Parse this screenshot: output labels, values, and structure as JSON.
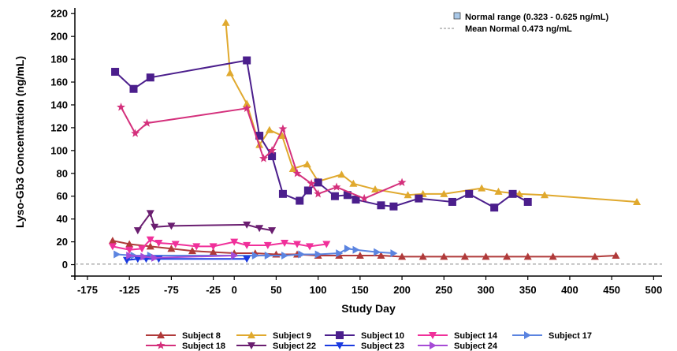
{
  "chart_data": {
    "type": "line",
    "xlabel": "Study Day",
    "ylabel": "Lyso-Gb3 Concentration (ng/mL)",
    "xlim": [
      -190,
      510
    ],
    "ylim": [
      -10,
      225
    ],
    "xticks": [
      -175,
      0,
      50,
      100,
      150,
      200,
      250,
      300,
      350,
      400,
      450,
      500
    ],
    "xtick_labels": [
      "-175",
      "0",
      "50",
      "100",
      "150",
      "200",
      "250",
      "300",
      "350",
      "400",
      "450",
      "500"
    ],
    "xtick_label_overrides": [
      {
        "value": -125,
        "label": "-125"
      },
      {
        "value": -75,
        "label": "-75"
      },
      {
        "value": -25,
        "label": "-25"
      }
    ],
    "yticks": [
      0,
      20,
      40,
      60,
      80,
      100,
      120,
      140,
      160,
      180,
      200,
      220
    ],
    "grid": false,
    "reference_lines": [
      {
        "name": "Mean Normal 0.473 ng/mL",
        "y": 0.473,
        "style": "dashed",
        "color": "#888888"
      }
    ],
    "normal_range": {
      "name": "Normal range (0.323 - 0.625 ng/mL)",
      "low": 0.323,
      "high": 0.625,
      "color": "#a9c8e8"
    },
    "legend_top": [
      {
        "label": "Normal range (0.323 - 0.625 ng/mL)",
        "kind": "range"
      },
      {
        "label": "Mean Normal 0.473 ng/mL",
        "kind": "dashed"
      }
    ],
    "legend_bottom_placement": "bottom-center",
    "series": [
      {
        "name": "Subject 8",
        "color": "#b03a3a",
        "marker": "triangle-up",
        "x": [
          -145,
          -125,
          -100,
          -75,
          -50,
          -25,
          0,
          25,
          50,
          75,
          100,
          125,
          150,
          175,
          200,
          225,
          250,
          275,
          300,
          325,
          350,
          380,
          430,
          455
        ],
        "y": [
          21,
          18,
          16,
          14,
          12,
          11,
          10,
          10,
          9,
          9,
          8,
          8,
          8,
          8,
          7,
          7,
          7,
          7,
          7,
          7,
          7,
          7,
          7,
          8
        ]
      },
      {
        "name": "Subject 9",
        "color": "#e0a92e",
        "marker": "triangle-up",
        "x": [
          -10,
          -5,
          15,
          30,
          42,
          57,
          70,
          87,
          100,
          128,
          142,
          168,
          207,
          225,
          250,
          295,
          315,
          340,
          370,
          480
        ],
        "y": [
          212,
          168,
          141,
          105,
          118,
          113,
          84,
          88,
          73,
          79,
          71,
          66,
          61,
          62,
          62,
          67,
          64,
          62,
          61,
          55
        ]
      },
      {
        "name": "Subject 10",
        "color": "#4b1e8c",
        "marker": "square",
        "x": [
          -142,
          -120,
          -100,
          15,
          30,
          45,
          58,
          78,
          88,
          100,
          120,
          135,
          145,
          175,
          190,
          220,
          260,
          280,
          310,
          332,
          350
        ],
        "y": [
          169,
          154,
          164,
          179,
          113,
          95,
          62,
          56,
          65,
          72,
          60,
          61,
          57,
          52,
          51,
          58,
          55,
          62,
          50,
          62,
          55
        ]
      },
      {
        "name": "Subject 14",
        "color": "#f0309a",
        "marker": "triangle-down",
        "x": [
          -145,
          -125,
          -110,
          -100,
          -90,
          -70,
          -45,
          -25,
          0,
          15,
          40,
          60,
          75,
          90,
          110
        ],
        "y": [
          16,
          13,
          14,
          22,
          19,
          18,
          16,
          16,
          20,
          17,
          17,
          19,
          18,
          16,
          18
        ]
      },
      {
        "name": "Subject 17",
        "color": "#5b84e0",
        "marker": "triangle-right",
        "x": [
          -140,
          -120,
          -100,
          0,
          25,
          40,
          60,
          80,
          100,
          125,
          135,
          145,
          170,
          190
        ],
        "y": [
          9,
          8,
          8,
          8,
          8,
          8,
          8,
          9,
          9,
          10,
          14,
          13,
          11,
          10
        ]
      },
      {
        "name": "Subject 18",
        "color": "#d4307c",
        "marker": "star",
        "x": [
          -135,
          -118,
          -104,
          15,
          35,
          45,
          58,
          75,
          92,
          100,
          122,
          155,
          200
        ],
        "y": [
          138,
          115,
          124,
          137,
          93,
          100,
          119,
          80,
          71,
          62,
          68,
          58,
          72
        ]
      },
      {
        "name": "Subject 22",
        "color": "#6a1e70",
        "marker": "triangle-down",
        "x": [
          -115,
          -100,
          -95,
          -75,
          15,
          30,
          45
        ],
        "y": [
          30,
          45,
          33,
          34,
          35,
          32,
          30
        ]
      },
      {
        "name": "Subject 23",
        "color": "#1a3ae0",
        "marker": "triangle-down",
        "x": [
          -128,
          -115,
          -105,
          -90,
          15
        ],
        "y": [
          4,
          5,
          5,
          5,
          5
        ]
      },
      {
        "name": "Subject 24",
        "color": "#a64bd6",
        "marker": "triangle-right",
        "x": [
          -125,
          -108,
          -95,
          0
        ],
        "y": [
          8,
          7,
          6,
          8
        ]
      }
    ]
  }
}
